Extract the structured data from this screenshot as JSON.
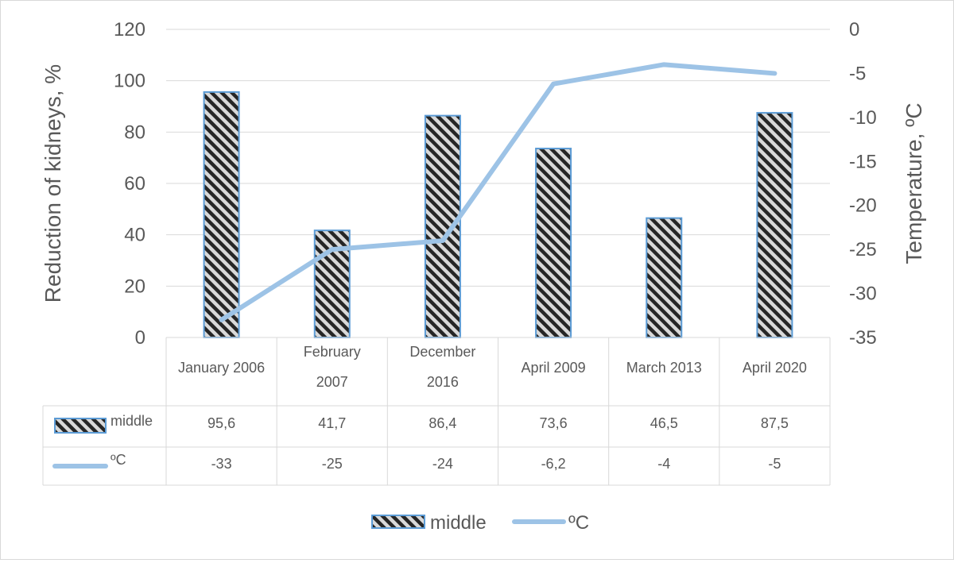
{
  "chart_data": {
    "type": "bar+line",
    "categories": [
      [
        "January 2006"
      ],
      [
        "February",
        "2007"
      ],
      [
        "December",
        "2016"
      ],
      [
        "April 2009"
      ],
      [
        "March 2013"
      ],
      [
        "April 2020"
      ]
    ],
    "series": [
      {
        "name": "middle",
        "type": "bar",
        "axis": "left",
        "values": [
          95.6,
          41.7,
          86.4,
          73.6,
          46.5,
          87.5
        ],
        "labels": [
          "95,6",
          "41,7",
          "86,4",
          "73,6",
          "46,5",
          "87,5"
        ]
      },
      {
        "name": "ºC",
        "type": "line",
        "axis": "right",
        "values": [
          -33,
          -25,
          -24,
          -6.2,
          -4,
          -5
        ],
        "labels": [
          "-33",
          "-25",
          "-24",
          "-6,2",
          "-4",
          "-5"
        ]
      }
    ],
    "ylabel": "Reduction of kidneys, %",
    "y2label": "Temperature, ºC",
    "ylim": [
      0,
      120
    ],
    "y2lim": [
      -35,
      0
    ],
    "yticks": [
      "0",
      "20",
      "40",
      "60",
      "80",
      "100",
      "120"
    ],
    "y2ticks": [
      "-35",
      "-30",
      "-25",
      "-20",
      "-15",
      "-10",
      "-5",
      "0"
    ],
    "grid": true,
    "legend": "bottom",
    "data_table": true,
    "colors": {
      "bar_fill": "#d9d9d9",
      "bar_hatch": "#262626",
      "bar_border": "#5b9bd5",
      "line": "#9dc3e6",
      "grid": "#d9d9d9",
      "text": "#595959"
    }
  }
}
